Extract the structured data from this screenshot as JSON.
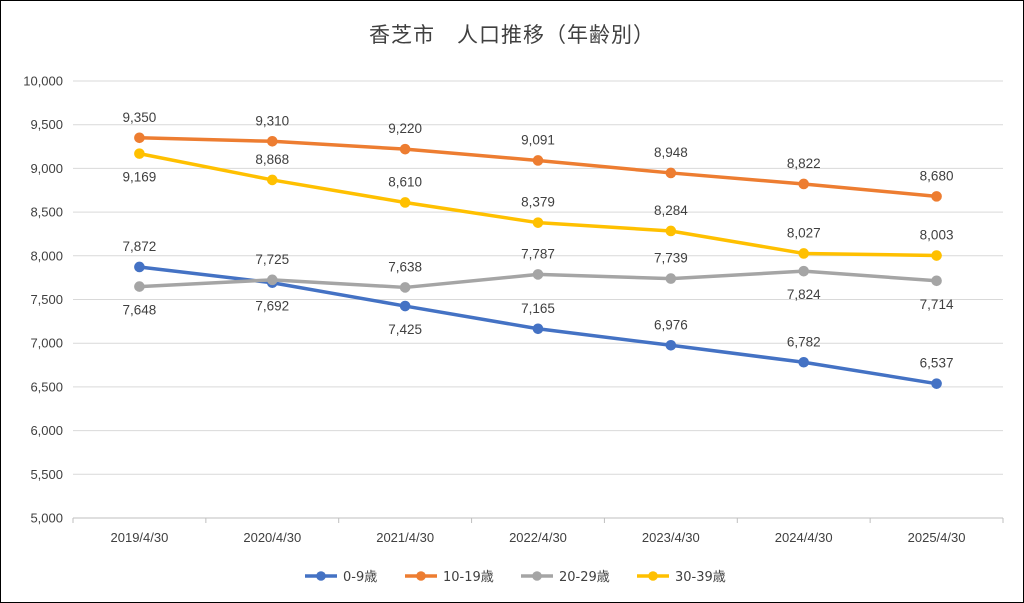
{
  "chart_data": {
    "type": "line",
    "title": "香芝市　人口推移（年齢別）",
    "categories": [
      "2019/4/30",
      "2020/4/30",
      "2021/4/30",
      "2022/4/30",
      "2023/4/30",
      "2024/4/30",
      "2025/4/30"
    ],
    "ylim": [
      5000,
      10000
    ],
    "yticks": [
      "5,000",
      "5,500",
      "6,000",
      "6,500",
      "7,000",
      "7,500",
      "8,000",
      "8,500",
      "9,000",
      "9,500",
      "10,000"
    ],
    "grid": true,
    "legend_position": "bottom",
    "series": [
      {
        "name": "0-9歳",
        "color": "#4472C4",
        "values": [
          7872,
          7692,
          7425,
          7165,
          6976,
          6782,
          6537
        ],
        "labels": [
          "7,872",
          "7,692",
          "7,425",
          "7,165",
          "6,976",
          "6,782",
          "6,537"
        ],
        "label_pos": [
          "above",
          "below",
          "below",
          "above",
          "above",
          "above",
          "above"
        ]
      },
      {
        "name": "10-19歳",
        "color": "#ED7D31",
        "values": [
          9350,
          9310,
          9220,
          9091,
          8948,
          8822,
          8680
        ],
        "labels": [
          "9,350",
          "9,310",
          "9,220",
          "9,091",
          "8,948",
          "8,822",
          "8,680"
        ],
        "label_pos": [
          "above",
          "above",
          "above",
          "above",
          "above",
          "above",
          "above"
        ]
      },
      {
        "name": "20-29歳",
        "color": "#A5A5A5",
        "values": [
          7648,
          7725,
          7638,
          7787,
          7739,
          7824,
          7714
        ],
        "labels": [
          "7,648",
          "7,725",
          "7,638",
          "7,787",
          "7,739",
          "7,824",
          "7,714"
        ],
        "label_pos": [
          "below",
          "above",
          "above",
          "above",
          "above",
          "below",
          "below"
        ]
      },
      {
        "name": "30-39歳",
        "color": "#FFC000",
        "values": [
          9169,
          8868,
          8610,
          8379,
          8284,
          8027,
          8003
        ],
        "labels": [
          "9,169",
          "8,868",
          "8,610",
          "8,379",
          "8,284",
          "8,027",
          "8,003"
        ],
        "label_pos": [
          "below",
          "above",
          "above",
          "above",
          "above",
          "above",
          "above"
        ]
      }
    ]
  }
}
